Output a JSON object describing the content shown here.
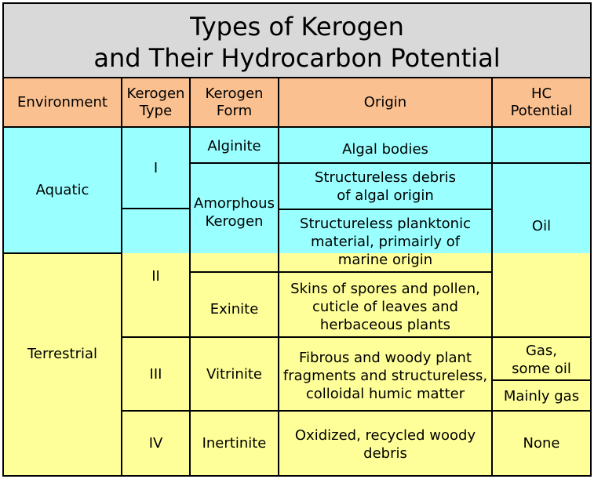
{
  "title": {
    "line1": "Types of Kerogen",
    "line2": "and Their Hydrocarbon Potential"
  },
  "header": {
    "environment": "Environment",
    "kerogen_type": [
      "Kerogen",
      "Type"
    ],
    "kerogen_form": [
      "Kerogen",
      "Form"
    ],
    "origin": "Origin",
    "hc_potential": [
      "HC",
      "Potential"
    ]
  },
  "environments": {
    "aquatic": "Aquatic",
    "terrestrial": "Terrestrial"
  },
  "types": {
    "i": "I",
    "ii": "II",
    "iii": "III",
    "iv": "IV"
  },
  "forms": {
    "alginite": "Alginite",
    "amorphous": [
      "Amorphous",
      "Kerogen"
    ],
    "exinite": "Exinite",
    "vitrinite": "Vitrinite",
    "inertinite": "Inertinite"
  },
  "origins": {
    "algal": "Algal bodies",
    "structureless_algal": [
      "Structureless debris",
      "of algal origin"
    ],
    "planktonic": [
      "Structureless planktonic",
      "material, primairly of",
      "marine origin"
    ],
    "spores": [
      "Skins of spores and pollen,",
      "cuticle of leaves and",
      "herbaceous plants"
    ],
    "fibrous": [
      "Fibrous and woody plant",
      "fragments and structureless,",
      "colloidal humic matter"
    ],
    "oxidized": [
      "Oxidized, recycled woody",
      "debris"
    ]
  },
  "potentials": {
    "oil": "Oil",
    "gas_some_oil": [
      "Gas,",
      "some oil"
    ],
    "mainly_gas": "Mainly gas",
    "none": "None"
  },
  "colors": {
    "title_bg": "#d9d9d9",
    "header_bg": "#fac090",
    "aquatic_bg": "#99ffff",
    "terrestrial_bg": "#ffff99"
  }
}
